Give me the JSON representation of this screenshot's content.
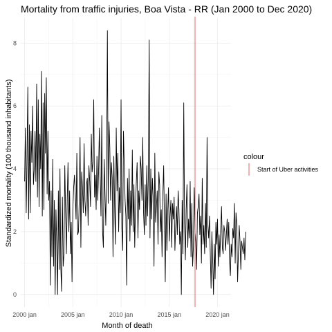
{
  "chart_data": {
    "type": "line",
    "title": "Mortality from traffic injuries, Boa Vista - RR (Jan 2000 to Dec 2020)",
    "xlabel": "Month of death",
    "ylabel": "Standardized mortality (100 thousand inhabitants)",
    "x_ticks": [
      "2000 jan",
      "2005 jan",
      "2010 jan",
      "2015 jan",
      "2020 jan"
    ],
    "x_tick_years": [
      2000,
      2005,
      2010,
      2015,
      2020
    ],
    "y_ticks": [
      0,
      2,
      4,
      6,
      8
    ],
    "xlim": [
      1999.6,
      2021.4
    ],
    "ylim": [
      -0.4,
      8.8
    ],
    "grid": true,
    "series": [
      {
        "start": "2000-01",
        "frequency": "monthly",
        "color": "#000000",
        "values": [
          3.6,
          5.3,
          2.6,
          4.3,
          6.6,
          2.4,
          5.4,
          2.6,
          5.2,
          4.2,
          6.0,
          3.5,
          4.0,
          5.2,
          3.6,
          6.7,
          3.1,
          6.2,
          2.8,
          5.1,
          4.0,
          7.1,
          2.5,
          6.1,
          2.7,
          6.4,
          4.5,
          6.9,
          3.2,
          5.2,
          3.0,
          3.6,
          0.3,
          3.3,
          1.2,
          4.3,
          0.9,
          3.0,
          0.0,
          2.7,
          1.6,
          0.0,
          3.3,
          0.8,
          4.0,
          0.9,
          0.1,
          3.1,
          0.9,
          1.3,
          4.1,
          2.6,
          1.3,
          3.0,
          4.2,
          2.0,
          3.3,
          1.3,
          2.3,
          0.4,
          2.7,
          3.4,
          3.8,
          3.2,
          2.4,
          4.5,
          1.9,
          2.0,
          3.0,
          5.0,
          1.5,
          3.9,
          3.4,
          2.6,
          4.8,
          3.0,
          2.5,
          3.5,
          3.7,
          2.2,
          4.1,
          3.6,
          2.8,
          5.1,
          3.9,
          4.2,
          6.2,
          3.1,
          3.8,
          2.7,
          4.4,
          3.0,
          3.9,
          5.3,
          3.8,
          2.5,
          5.7,
          2.0,
          1.5,
          4.3,
          3.2,
          2.2,
          4.0,
          8.4,
          2.9,
          5.5,
          4.7,
          3.0,
          4.2,
          3.7,
          1.2,
          4.4,
          2.8,
          1.6,
          5.3,
          3.3,
          4.5,
          2.0,
          3.4,
          2.6,
          6.2,
          2.1,
          1.4,
          5.2,
          4.1,
          3.0,
          2.5,
          0.3,
          3.7,
          2.4,
          4.0,
          1.7,
          3.3,
          2.2,
          4.6,
          2.0,
          3.5,
          1.5,
          2.8,
          3.6,
          4.2,
          1.8,
          3.3,
          2.7,
          4.4,
          4.0,
          3.0,
          5.0,
          2.6,
          1.9,
          3.5,
          2.2,
          4.1,
          2.5,
          3.8,
          8.1,
          1.8,
          4.0,
          2.4,
          3.7,
          3.1,
          0.9,
          4.5,
          2.3,
          2.8,
          3.3,
          1.6,
          3.9,
          3.5,
          2.0,
          2.7,
          1.2,
          3.2,
          4.1,
          2.3,
          0.4,
          3.2,
          1.4,
          2.6,
          3.4,
          1.7,
          2.5,
          3.0,
          1.5,
          2.9,
          2.4,
          3.1,
          1.4,
          2.2,
          2.8,
          1.9,
          3.3,
          2.7,
          1.6,
          2.0,
          0.0,
          3.0,
          1.3,
          6.1,
          2.3,
          1.1,
          2.7,
          3.5,
          1.5,
          2.4,
          1.8,
          3.6,
          1.2,
          2.9,
          0.9,
          1.5,
          3.4,
          2.0,
          1.7,
          0.8,
          2.6,
          2.8,
          3.2,
          1.9,
          2.5,
          1.0,
          3.7,
          1.6,
          2.2,
          1.3,
          2.9,
          1.5,
          5.0,
          2.2,
          1.8,
          2.5,
          1.3,
          0.2,
          2.0,
          1.1,
          0.0,
          1.6,
          0.5,
          2.3,
          1.6,
          2.4,
          0.9,
          1.9,
          1.2,
          2.1,
          2.8,
          1.5,
          1.3,
          2.2,
          2.0,
          1.4,
          1.9,
          2.4,
          1.6,
          2.3,
          1.0,
          0.6,
          1.6,
          1.2,
          2.1,
          1.8,
          2.9,
          1.0,
          2.6,
          2.2,
          0.4,
          1.3,
          2.2,
          1.7,
          0.8,
          1.7,
          1.5,
          1.3,
          1.8,
          1.1,
          2.0
        ]
      }
    ],
    "reference_line": {
      "x": "2017-09",
      "x_year": 2017.67,
      "color": "#e06666"
    },
    "legend": {
      "title": "colour",
      "placement": "right",
      "entries": [
        {
          "label": "Start of Uber activities",
          "color": "#e06666"
        }
      ]
    }
  }
}
